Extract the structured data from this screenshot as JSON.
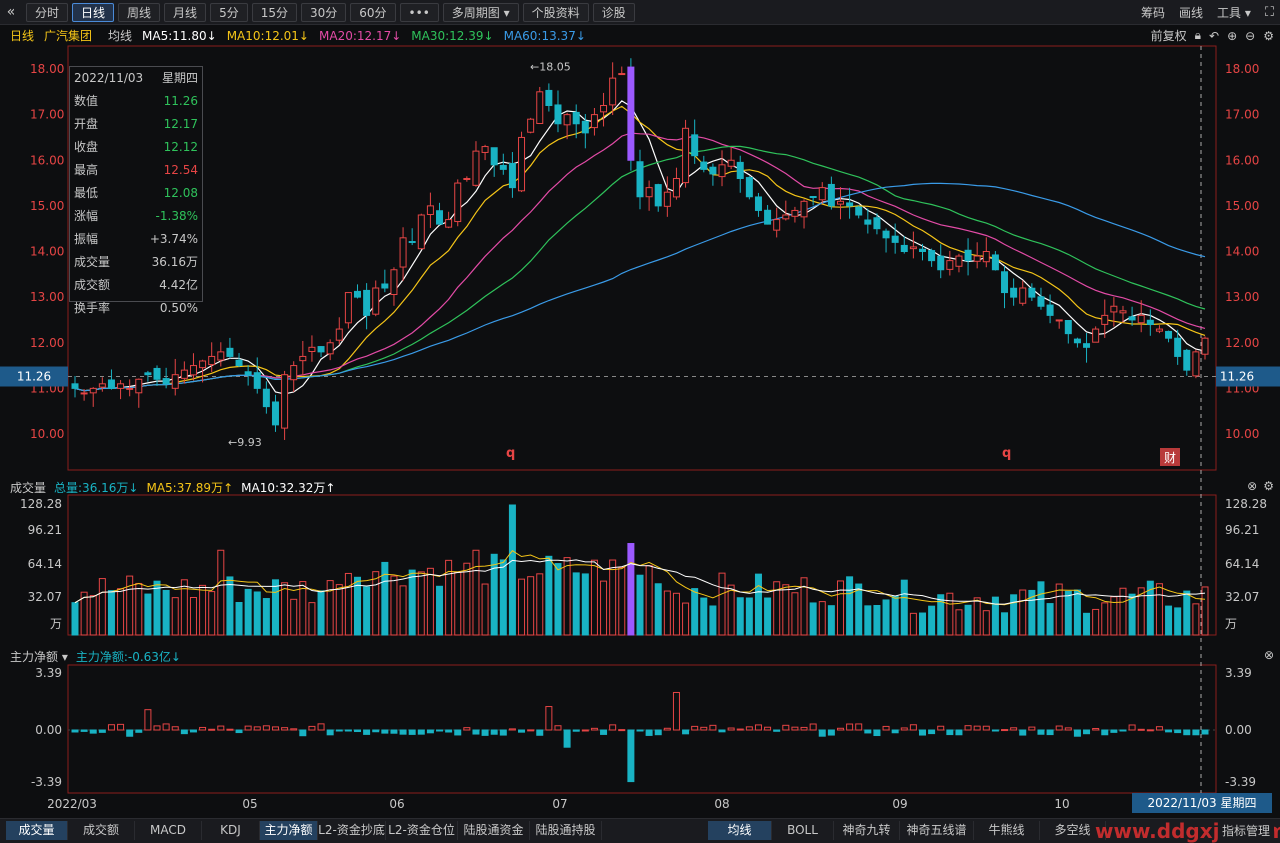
{
  "toolbar": {
    "collapse_icon": "double-chevron-left-icon",
    "tabs": [
      "分时",
      "日线",
      "周线",
      "月线",
      "5分",
      "15分",
      "30分",
      "60分",
      "•••",
      "多周期图 ▾",
      "个股资料",
      "诊股"
    ],
    "active_tab": "日线",
    "right": [
      "筹码",
      "画线",
      "工具 ▾"
    ],
    "fullscreen_icon": "fullscreen-icon"
  },
  "info": {
    "period": "日线",
    "stock": "广汽集团",
    "ma_label": "均线",
    "ma": [
      {
        "label": "MA5:11.80↓",
        "color": "#ffffff"
      },
      {
        "label": "MA10:12.01↓",
        "color": "#f5c518"
      },
      {
        "label": "MA20:12.17↓",
        "color": "#e24ba6"
      },
      {
        "label": "MA30:12.39↓",
        "color": "#2fc25b"
      },
      {
        "label": "MA60:13.37↓",
        "color": "#3a9be8"
      }
    ],
    "adjust": "前复权"
  },
  "price_axis": [
    "18.00",
    "17.00",
    "16.00",
    "15.00",
    "14.00",
    "13.00",
    "12.00",
    "11.00",
    "10.00"
  ],
  "current_price_tag": "11.26",
  "high_label": "18.05",
  "low_label": "9.93",
  "markers": [
    "q",
    "q"
  ],
  "cai_badge": "财",
  "infobox": {
    "date": "2022/11/03",
    "weekday": "星期四",
    "rows": [
      {
        "k": "数值",
        "v": "11.26",
        "c": "#2fc25b"
      },
      {
        "k": "开盘",
        "v": "12.17",
        "c": "#2fc25b"
      },
      {
        "k": "收盘",
        "v": "12.12",
        "c": "#2fc25b"
      },
      {
        "k": "最高",
        "v": "12.54",
        "c": "#e64545"
      },
      {
        "k": "最低",
        "v": "12.08",
        "c": "#2fc25b"
      },
      {
        "k": "涨幅",
        "v": "-1.38%",
        "c": "#2fc25b"
      },
      {
        "k": "振幅",
        "v": "+3.74%",
        "c": "#c8c8c8"
      },
      {
        "k": "成交量",
        "v": "36.16万",
        "c": "#c8c8c8"
      },
      {
        "k": "成交额",
        "v": "4.42亿",
        "c": "#c8c8c8"
      },
      {
        "k": "换手率",
        "v": "0.50%",
        "c": "#c8c8c8"
      }
    ]
  },
  "volume": {
    "title": "成交量",
    "total": "总量:36.16万↓",
    "ma5": "MA5:37.89万↑",
    "ma10": "MA10:32.32万↑",
    "axis": [
      "128.28",
      "96.21",
      "64.14",
      "32.07",
      "万"
    ]
  },
  "flow": {
    "title": "主力净额 ▾",
    "value": "主力净额:-0.63亿↓",
    "axis": [
      "3.39",
      "0.00",
      "-3.39"
    ]
  },
  "date_axis": [
    "2022/03",
    "05",
    "06",
    "07",
    "08",
    "09",
    "10"
  ],
  "date_tag": "2022/11/03 星期四",
  "bottom_tabs_left": [
    "成交量",
    "成交额",
    "MACD",
    "KDJ",
    "主力净额",
    "L2-资金抄底",
    "L2-资金仓位",
    "陆股通资金",
    "陆股通持股"
  ],
  "bottom_tabs_right": [
    "均线",
    "BOLL",
    "神奇九转",
    "神奇五线谱",
    "牛熊线",
    "多空线"
  ],
  "bottom_right_label": "指标管理",
  "watermark": "www.ddgxjx.com",
  "colors": {
    "up": "#e64545",
    "down": "#19b3c4",
    "ma5": "#ffffff",
    "ma10": "#f5c518",
    "ma20": "#e24ba6",
    "ma30": "#2fc25b",
    "ma60": "#3a9be8"
  },
  "chart_data": {
    "type": "candlestick",
    "y_range": [
      9.8,
      18.3
    ],
    "closes": [
      11.0,
      10.9,
      11.0,
      11.1,
      11.0,
      11.1,
      11.0,
      11.2,
      11.3,
      11.2,
      11.1,
      11.3,
      11.4,
      11.5,
      11.6,
      11.7,
      11.8,
      11.7,
      11.5,
      11.3,
      11.0,
      10.6,
      10.2,
      11.3,
      11.5,
      11.7,
      11.9,
      11.8,
      12.0,
      12.3,
      13.1,
      13.0,
      12.6,
      13.2,
      13.2,
      13.6,
      14.3,
      14.2,
      14.8,
      15.0,
      14.6,
      14.7,
      15.5,
      15.6,
      16.2,
      16.3,
      15.9,
      15.8,
      15.4,
      16.5,
      16.9,
      17.5,
      17.2,
      16.8,
      17.0,
      16.8,
      16.6,
      17.0,
      17.2,
      17.8,
      17.9,
      16.0,
      15.2,
      15.4,
      15.0,
      15.3,
      15.6,
      16.7,
      16.1,
      15.8,
      15.7,
      15.9,
      16.0,
      15.6,
      15.2,
      14.9,
      14.6,
      14.7,
      14.8,
      14.9,
      15.1,
      15.2,
      15.4,
      15.0,
      15.1,
      15.0,
      14.8,
      14.6,
      14.5,
      14.3,
      14.2,
      14.0,
      14.1,
      14.0,
      13.8,
      13.6,
      13.8,
      13.9,
      13.8,
      13.9,
      14.0,
      13.6,
      13.1,
      13.0,
      13.2,
      13.0,
      12.8,
      12.6,
      12.5,
      12.2,
      12.0,
      11.9,
      12.3,
      12.6,
      12.8,
      12.7,
      12.5,
      12.6,
      12.4,
      12.3,
      12.1,
      11.7,
      11.4,
      11.8,
      12.1
    ]
  }
}
